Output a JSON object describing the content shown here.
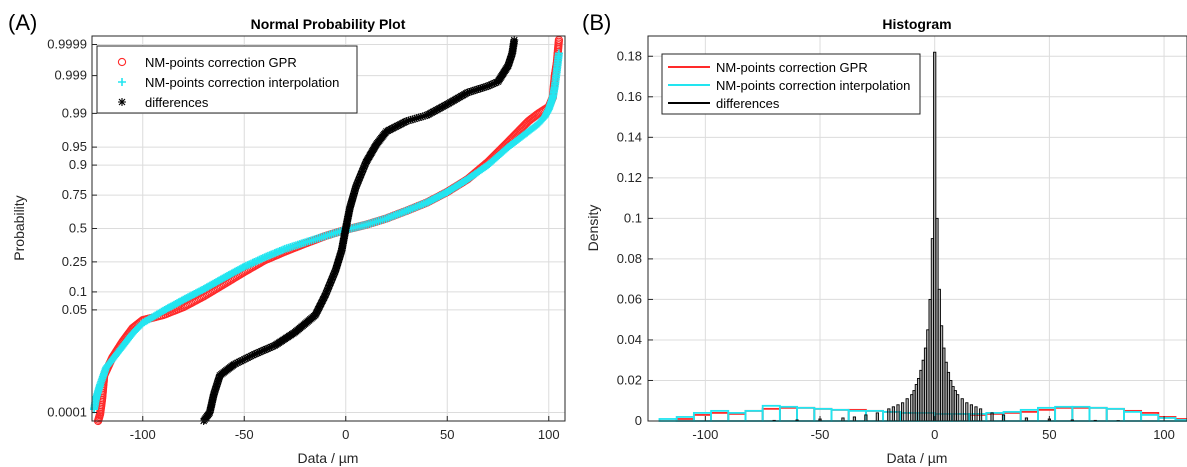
{
  "panels": {
    "a": {
      "label": "(A)"
    },
    "b": {
      "label": "(B)"
    }
  },
  "chart_data": [
    {
      "type": "scatter",
      "title": "Normal Probability Plot",
      "xlabel": "Data / µm",
      "ylabel": "Probability",
      "xlim": [
        -125,
        108
      ],
      "ylim_probability": [
        5e-05,
        0.99995
      ],
      "y_scale": "normal-probability",
      "grid": true,
      "legend_position": "top-left",
      "x_ticks": [
        -100,
        -50,
        0,
        50,
        100
      ],
      "x_tick_labels": [
        "-100",
        "-50",
        "0",
        "50",
        "100"
      ],
      "y_ticks": [
        0.0001,
        0.05,
        0.1,
        0.25,
        0.5,
        0.75,
        0.9,
        0.95,
        0.99,
        0.999,
        0.9999
      ],
      "y_tick_labels": [
        "0.0001",
        "0.05",
        "0.1",
        "0.25",
        "0.5",
        "0.75",
        "0.9",
        "0.95",
        "0.99",
        "0.999",
        "0.9999"
      ],
      "series": [
        {
          "name": "NM-points correction GPR",
          "marker": "circle",
          "color": "#ff2a2a",
          "points": [
            [
              -122,
              5e-05
            ],
            [
              -121,
              9e-05
            ],
            [
              -120,
              0.0003
            ],
            [
              -119,
              0.0015
            ],
            [
              -115,
              0.0045
            ],
            [
              -110,
              0.011
            ],
            [
              -105,
              0.022
            ],
            [
              -100,
              0.032
            ],
            [
              -90,
              0.04
            ],
            [
              -80,
              0.056
            ],
            [
              -70,
              0.085
            ],
            [
              -60,
              0.13
            ],
            [
              -50,
              0.19
            ],
            [
              -40,
              0.26
            ],
            [
              -30,
              0.32
            ],
            [
              -20,
              0.38
            ],
            [
              -10,
              0.44
            ],
            [
              0,
              0.49
            ],
            [
              10,
              0.53
            ],
            [
              20,
              0.58
            ],
            [
              30,
              0.64
            ],
            [
              40,
              0.7
            ],
            [
              50,
              0.77
            ],
            [
              60,
              0.84
            ],
            [
              70,
              0.91
            ],
            [
              80,
              0.96
            ],
            [
              90,
              0.985
            ],
            [
              95,
              0.99
            ],
            [
              100,
              0.993
            ],
            [
              102,
              0.996
            ],
            [
              103,
              0.999
            ],
            [
              104,
              0.9996
            ],
            [
              105,
              0.99993
            ]
          ]
        },
        {
          "name": "NM-points correction interpolation",
          "marker": "plus",
          "color": "#22e5f0",
          "points": [
            [
              -124,
              0.00013
            ],
            [
              -123,
              0.0003
            ],
            [
              -121,
              0.0008
            ],
            [
              -118,
              0.0025
            ],
            [
              -115,
              0.004
            ],
            [
              -110,
              0.0085
            ],
            [
              -105,
              0.017
            ],
            [
              -100,
              0.028
            ],
            [
              -90,
              0.048
            ],
            [
              -80,
              0.075
            ],
            [
              -70,
              0.11
            ],
            [
              -60,
              0.16
            ],
            [
              -50,
              0.22
            ],
            [
              -40,
              0.28
            ],
            [
              -30,
              0.34
            ],
            [
              -20,
              0.39
            ],
            [
              -10,
              0.44
            ],
            [
              0,
              0.49
            ],
            [
              10,
              0.53
            ],
            [
              20,
              0.58
            ],
            [
              30,
              0.64
            ],
            [
              40,
              0.7
            ],
            [
              50,
              0.77
            ],
            [
              60,
              0.84
            ],
            [
              70,
              0.9
            ],
            [
              80,
              0.95
            ],
            [
              90,
              0.975
            ],
            [
              95,
              0.983
            ],
            [
              98,
              0.988
            ],
            [
              100,
              0.992
            ],
            [
              102,
              0.996
            ],
            [
              103,
              0.998
            ],
            [
              104,
              0.9993
            ],
            [
              105,
              0.9998
            ]
          ]
        },
        {
          "name": "differences",
          "marker": "asterisk",
          "color": "#000000",
          "points": [
            [
              -70,
              5e-05
            ],
            [
              -67,
              0.0001
            ],
            [
              -65,
              0.0004
            ],
            [
              -62,
              0.0015
            ],
            [
              -55,
              0.003
            ],
            [
              -45,
              0.0055
            ],
            [
              -35,
              0.009
            ],
            [
              -25,
              0.018
            ],
            [
              -15,
              0.04
            ],
            [
              -10,
              0.09
            ],
            [
              -5,
              0.2
            ],
            [
              -2,
              0.33
            ],
            [
              0,
              0.5
            ],
            [
              2,
              0.66
            ],
            [
              5,
              0.8
            ],
            [
              10,
              0.91
            ],
            [
              15,
              0.955
            ],
            [
              20,
              0.975
            ],
            [
              30,
              0.985
            ],
            [
              40,
              0.989
            ],
            [
              50,
              0.994
            ],
            [
              60,
              0.997
            ],
            [
              70,
              0.998
            ],
            [
              75,
              0.9985
            ],
            [
              80,
              0.9995
            ],
            [
              82,
              0.9998
            ],
            [
              83,
              0.99993
            ]
          ]
        }
      ]
    },
    {
      "type": "bar",
      "title": "Histogram",
      "xlabel": "Data / µm",
      "ylabel": "Density",
      "xlim": [
        -125,
        110
      ],
      "ylim": [
        0,
        0.19
      ],
      "grid": true,
      "legend_position": "top-left",
      "x_ticks": [
        -100,
        -50,
        0,
        50,
        100
      ],
      "x_tick_labels": [
        "-100",
        "-50",
        "0",
        "50",
        "100"
      ],
      "y_ticks": [
        0,
        0.02,
        0.04,
        0.06,
        0.08,
        0.1,
        0.12,
        0.14,
        0.16,
        0.18
      ],
      "y_tick_labels": [
        "0",
        "0.02",
        "0.04",
        "0.06",
        "0.08",
        "0.1",
        "0.12",
        "0.14",
        "0.16",
        "0.18"
      ],
      "series": [
        {
          "name": "NM-points correction GPR",
          "color": "#ff2a2a",
          "bin_width": 7.5,
          "bin_edges_start": -127.5,
          "values": [
            0,
            0,
            0.001,
            0.003,
            0.004,
            0.0035,
            0.005,
            0.006,
            0.0065,
            0.0065,
            0.006,
            0.0055,
            0.0055,
            0.005,
            0.0045,
            0.004,
            0.004,
            0.0035,
            0.0035,
            0.003,
            0.0035,
            0.004,
            0.0045,
            0.0055,
            0.0065,
            0.0065,
            0.0065,
            0.006,
            0.005,
            0.004,
            0.002,
            0.001,
            0,
            0
          ]
        },
        {
          "name": "NM-points correction interpolation",
          "color": "#22e5f0",
          "bin_width": 7.5,
          "bin_edges_start": -127.5,
          "values": [
            0,
            0.001,
            0.002,
            0.004,
            0.005,
            0.004,
            0.005,
            0.0075,
            0.007,
            0.0065,
            0.006,
            0.0055,
            0.005,
            0.005,
            0.0045,
            0.004,
            0.004,
            0.0035,
            0.0035,
            0.0035,
            0.004,
            0.0045,
            0.0055,
            0.0065,
            0.007,
            0.007,
            0.0065,
            0.006,
            0.0045,
            0.003,
            0.0015,
            0.0005,
            0,
            0
          ]
        },
        {
          "name": "differences",
          "color": "#000000",
          "bin_width": 1,
          "x": [
            -70,
            -60,
            -50,
            -40,
            -35,
            -30,
            -25,
            -20,
            -18,
            -16,
            -14,
            -12,
            -10,
            -9,
            -8,
            -7,
            -6,
            -5,
            -4,
            -3,
            -2,
            -1,
            0,
            1,
            2,
            3,
            4,
            5,
            6,
            7,
            8,
            9,
            10,
            12,
            14,
            16,
            18,
            20,
            25,
            30,
            40,
            50,
            60,
            70,
            80
          ],
          "values": [
            0.0003,
            0.0005,
            0.001,
            0.0015,
            0.002,
            0.003,
            0.004,
            0.006,
            0.007,
            0.008,
            0.009,
            0.011,
            0.013,
            0.015,
            0.018,
            0.021,
            0.025,
            0.03,
            0.036,
            0.045,
            0.06,
            0.09,
            0.182,
            0.1,
            0.065,
            0.047,
            0.036,
            0.029,
            0.024,
            0.02,
            0.017,
            0.015,
            0.013,
            0.011,
            0.009,
            0.008,
            0.007,
            0.006,
            0.004,
            0.003,
            0.0015,
            0.001,
            0.0005,
            0.0003,
            0.0002
          ]
        }
      ]
    }
  ]
}
